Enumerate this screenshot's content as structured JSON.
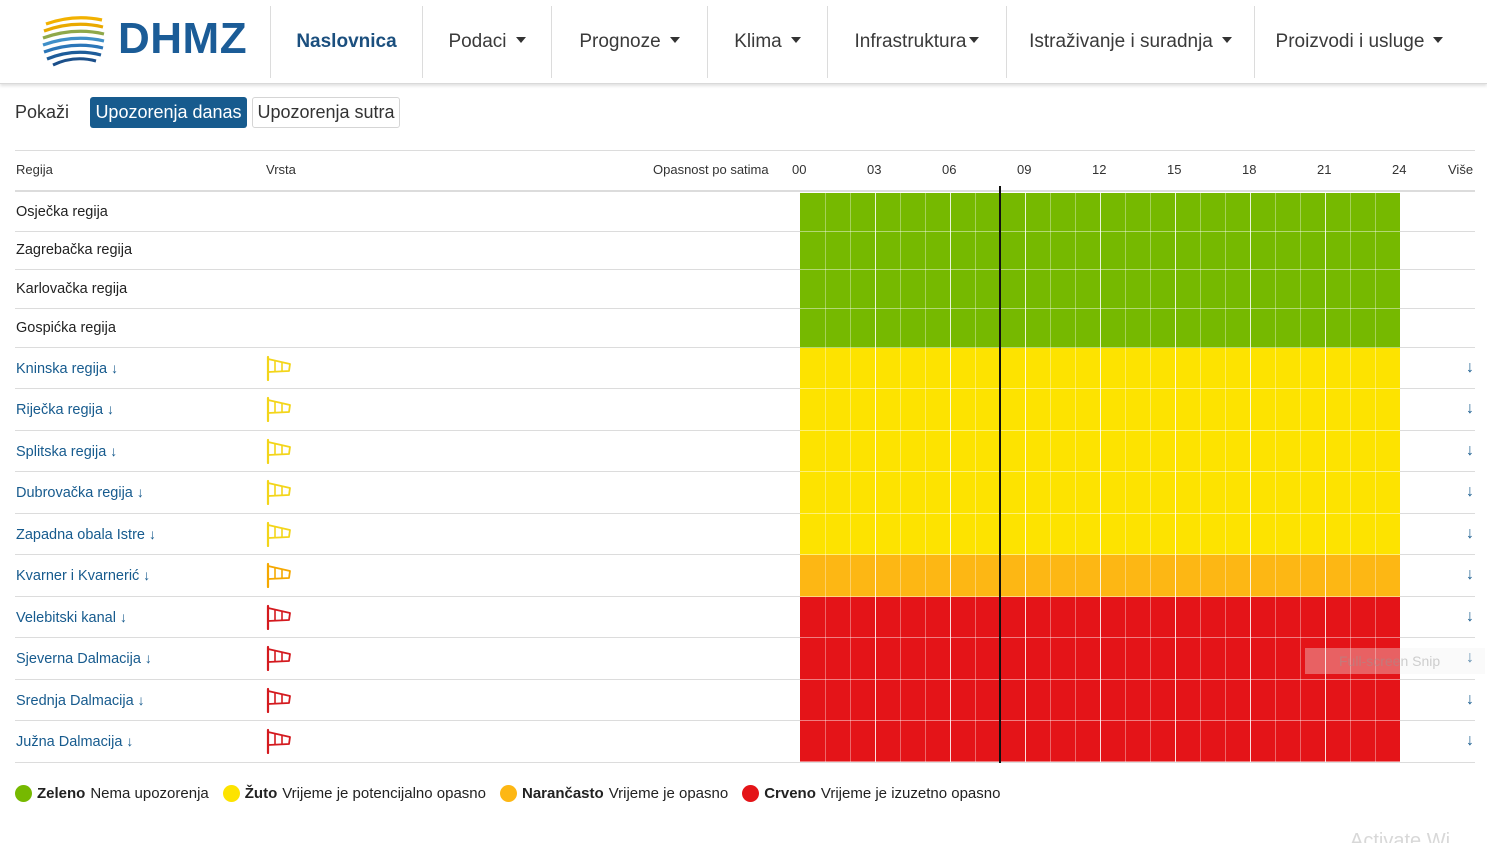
{
  "header": {
    "logo_text": "DHMZ",
    "nav": [
      {
        "label": "Naslovnica",
        "active": true,
        "dropdown": false
      },
      {
        "label": "Podaci",
        "active": false,
        "dropdown": true
      },
      {
        "label": "Prognoze",
        "active": false,
        "dropdown": true
      },
      {
        "label": "Klima",
        "active": false,
        "dropdown": true
      },
      {
        "label": "Infrastruktura",
        "active": false,
        "dropdown": true
      },
      {
        "label": "Istraživanje i suradnja",
        "active": false,
        "dropdown": true
      },
      {
        "label": "Proizvodi i usluge",
        "active": false,
        "dropdown": true
      }
    ]
  },
  "toolbar": {
    "show_label": "Pokaži",
    "today_label": "Upozorenja danas",
    "tomorrow_label": "Upozorenja sutra",
    "active": "today"
  },
  "table": {
    "headers": {
      "region": "Regija",
      "type": "Vrsta",
      "hours": "Opasnost po satima",
      "more": "Više"
    },
    "hour_ticks": [
      "00",
      "03",
      "06",
      "09",
      "12",
      "15",
      "18",
      "21",
      "24"
    ],
    "current_hour": 8,
    "rows": [
      {
        "region": "Osječka regija",
        "level": "green",
        "link": false,
        "flag": null
      },
      {
        "region": "Zagrebačka regija",
        "level": "green",
        "link": false,
        "flag": null
      },
      {
        "region": "Karlovačka regija",
        "level": "green",
        "link": false,
        "flag": null
      },
      {
        "region": "Gospićka regija",
        "level": "green",
        "link": false,
        "flag": null
      },
      {
        "region": "Kninska regija",
        "level": "yellow",
        "link": true,
        "flag": "wind-yellow"
      },
      {
        "region": "Riječka regija",
        "level": "yellow",
        "link": true,
        "flag": "wind-yellow"
      },
      {
        "region": "Splitska regija",
        "level": "yellow",
        "link": true,
        "flag": "wind-yellow"
      },
      {
        "region": "Dubrovačka regija",
        "level": "yellow",
        "link": true,
        "flag": "wind-yellow"
      },
      {
        "region": "Zapadna obala Istre",
        "level": "yellow",
        "link": true,
        "flag": "wind-yellow"
      },
      {
        "region": "Kvarner i Kvarnerić",
        "level": "orange",
        "link": true,
        "flag": "wind-orange"
      },
      {
        "region": "Velebitski kanal",
        "level": "red",
        "link": true,
        "flag": "wind-red"
      },
      {
        "region": "Sjeverna Dalmacija",
        "level": "red",
        "link": true,
        "flag": "wind-red"
      },
      {
        "region": "Srednja Dalmacija",
        "level": "red",
        "link": true,
        "flag": "wind-red"
      },
      {
        "region": "Južna Dalmacija",
        "level": "red",
        "link": true,
        "flag": "wind-red"
      }
    ]
  },
  "colors": {
    "green": "#76b900",
    "yellow": "#fde300",
    "orange": "#fdb714",
    "red": "#e41418",
    "brand": "#1b5c97"
  },
  "legend": [
    {
      "level": "green",
      "name": "Zeleno",
      "desc": "Nema upozorenja"
    },
    {
      "level": "yellow",
      "name": "Žuto",
      "desc": "Vrijeme je potencijalno opasno"
    },
    {
      "level": "orange",
      "name": "Narančasto",
      "desc": "Vrijeme je opasno"
    },
    {
      "level": "red",
      "name": "Crveno",
      "desc": "Vrijeme je izuzetno opasno"
    }
  ],
  "overlay": {
    "snip_text": "Full-screen Snip",
    "watermark": "Activate Wi"
  }
}
